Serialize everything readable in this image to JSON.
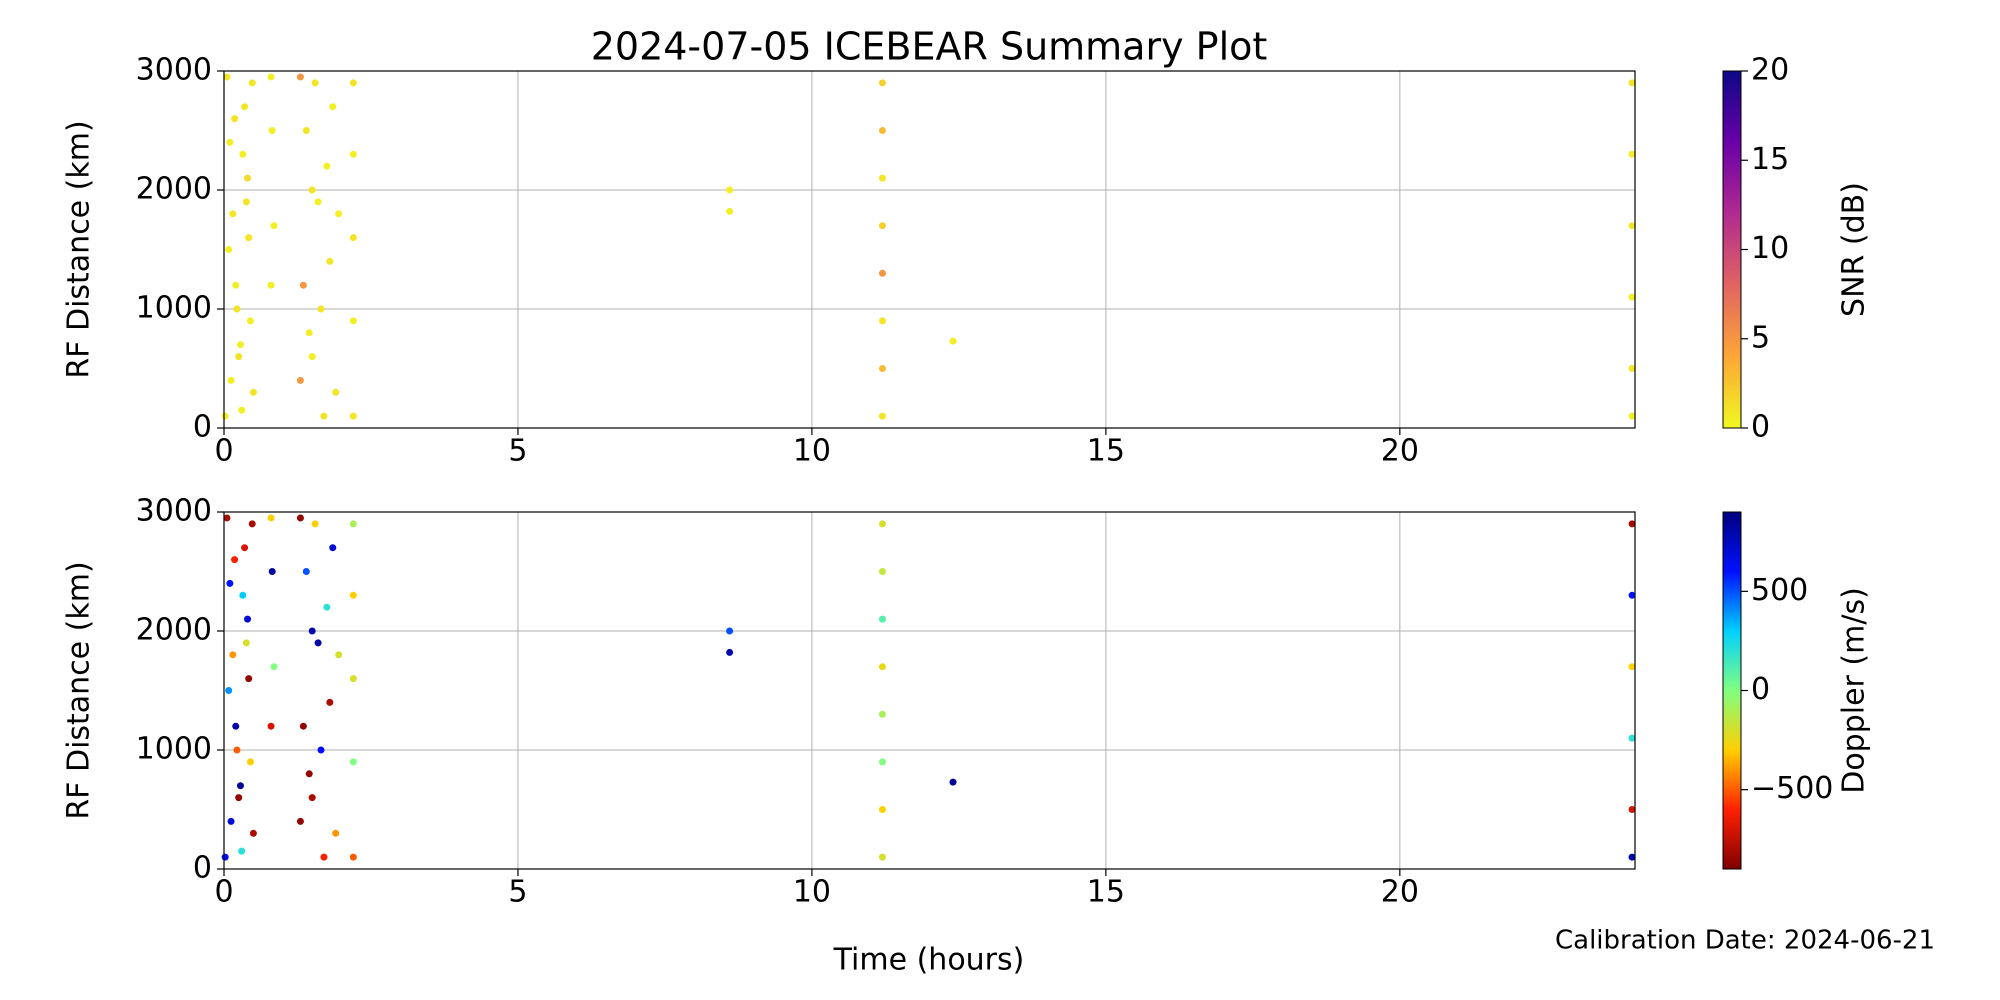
{
  "chart_data": [
    {
      "type": "scatter",
      "title": "2024-07-05 ICEBEAR Summary Plot",
      "ylabel": "RF Distance (km)",
      "xlim": [
        0,
        24
      ],
      "xticks": [
        0,
        5,
        10,
        15,
        20
      ],
      "ylim": [
        0,
        3000
      ],
      "yticks": [
        0,
        1000,
        2000,
        3000
      ],
      "grid": true,
      "x": [
        0.05,
        0.1,
        0.15,
        0.2,
        0.25,
        0.3,
        0.35,
        0.4,
        0.45,
        0.5,
        0.08,
        0.18,
        0.28,
        0.38,
        0.48,
        0.12,
        0.22,
        0.32,
        0.42,
        0.02,
        0.8,
        0.82,
        0.85,
        0.8,
        1.3,
        1.35,
        1.4,
        1.5,
        1.55,
        1.6,
        1.7,
        1.75,
        1.8,
        1.85,
        1.9,
        1.45,
        1.65,
        1.3,
        1.95,
        1.5,
        2.2,
        2.2,
        2.2,
        2.2,
        2.2,
        8.6,
        8.6,
        11.2,
        11.2,
        11.2,
        11.2,
        11.2,
        11.2,
        11.2,
        11.2,
        12.4,
        23.95,
        23.95,
        23.95,
        23.95,
        23.95,
        23.95
      ],
      "y": [
        2950,
        2400,
        1800,
        1200,
        600,
        150,
        2700,
        2100,
        900,
        300,
        1500,
        2600,
        700,
        1900,
        2900,
        400,
        1000,
        2300,
        1600,
        100,
        2950,
        2500,
        1700,
        1200,
        2950,
        1200,
        2500,
        600,
        2900,
        1900,
        100,
        2200,
        1400,
        2700,
        300,
        800,
        1000,
        400,
        1800,
        2000,
        2900,
        2300,
        1600,
        900,
        100,
        2000,
        1820,
        2900,
        2500,
        2100,
        1700,
        1300,
        900,
        500,
        100,
        730,
        2900,
        2300,
        1700,
        1100,
        500,
        100
      ],
      "c": [
        1,
        0.5,
        1,
        0.5,
        1,
        0.5,
        1,
        1.5,
        0.5,
        1,
        0.5,
        1,
        0.5,
        1,
        1,
        0.5,
        1,
        0.5,
        1,
        0.5,
        0.5,
        0.5,
        0.5,
        0.5,
        5,
        5,
        1,
        0.5,
        1,
        0.5,
        1,
        0.5,
        1,
        0.5,
        1,
        0.5,
        1,
        5,
        0.5,
        1,
        1,
        0.5,
        1,
        0.5,
        1,
        0.5,
        0.5,
        2,
        3,
        1,
        2,
        5,
        1,
        3,
        1,
        0.5,
        1,
        0.5,
        1,
        0.5,
        1,
        0.5
      ],
      "colorbar": {
        "label": "SNR (dB)",
        "lim": [
          0,
          20
        ],
        "ticks": [
          0,
          5,
          10,
          15,
          20
        ],
        "colormap": [
          "#f0f921",
          "#fca636",
          "#e16462",
          "#b12a90",
          "#6a00a8",
          "#0d0887"
        ]
      }
    },
    {
      "type": "scatter",
      "ylabel": "RF Distance (km)",
      "xlabel": "Time (hours)",
      "annotation": "Calibration Date: 2024-06-21",
      "xlim": [
        0,
        24
      ],
      "xticks": [
        0,
        5,
        10,
        15,
        20
      ],
      "ylim": [
        0,
        3000
      ],
      "yticks": [
        0,
        1000,
        2000,
        3000
      ],
      "grid": true,
      "x": [
        0.05,
        0.1,
        0.15,
        0.2,
        0.25,
        0.3,
        0.35,
        0.4,
        0.45,
        0.5,
        0.08,
        0.18,
        0.28,
        0.38,
        0.48,
        0.12,
        0.22,
        0.32,
        0.42,
        0.02,
        0.8,
        0.82,
        0.85,
        0.8,
        1.3,
        1.35,
        1.4,
        1.5,
        1.55,
        1.6,
        1.7,
        1.75,
        1.8,
        1.85,
        1.9,
        1.45,
        1.65,
        1.3,
        1.95,
        1.5,
        2.2,
        2.2,
        2.2,
        2.2,
        2.2,
        8.6,
        8.6,
        11.2,
        11.2,
        11.2,
        11.2,
        11.2,
        11.2,
        11.2,
        11.2,
        12.4,
        23.95,
        23.95,
        23.95,
        23.95,
        23.95,
        23.95
      ],
      "y": [
        2950,
        2400,
        1800,
        1200,
        600,
        150,
        2700,
        2100,
        900,
        300,
        1500,
        2600,
        700,
        1900,
        2900,
        400,
        1000,
        2300,
        1600,
        100,
        2950,
        2500,
        1700,
        1200,
        2950,
        1200,
        2500,
        600,
        2900,
        1900,
        100,
        2200,
        1400,
        2700,
        300,
        800,
        1000,
        400,
        1800,
        2000,
        2900,
        2300,
        1600,
        900,
        100,
        2000,
        1820,
        2900,
        2500,
        2100,
        1700,
        1300,
        900,
        500,
        100,
        730,
        2900,
        2300,
        1700,
        1100,
        500,
        100
      ],
      "c": [
        -800,
        600,
        -400,
        800,
        -850,
        200,
        -700,
        700,
        -300,
        -800,
        400,
        -600,
        850,
        -200,
        -800,
        700,
        -500,
        300,
        -850,
        600,
        -300,
        800,
        0,
        -700,
        -850,
        -850,
        500,
        -800,
        -300,
        800,
        -600,
        200,
        -800,
        700,
        -400,
        -850,
        600,
        -850,
        -200,
        800,
        -100,
        -300,
        -200,
        0,
        -500,
        500,
        800,
        -200,
        -150,
        100,
        -250,
        -100,
        0,
        -300,
        -200,
        850,
        -800,
        600,
        -300,
        200,
        -700,
        800
      ],
      "colorbar": {
        "label": "Doppler (m/s)",
        "lim": [
          -900,
          900
        ],
        "ticks": [
          {
            "value": -500,
            "label": "−500"
          },
          0,
          500
        ],
        "colormap": [
          "#800000",
          "#ff2000",
          "#ffd000",
          "#80ff80",
          "#00d0ff",
          "#0010ff",
          "#00007f"
        ]
      }
    }
  ]
}
